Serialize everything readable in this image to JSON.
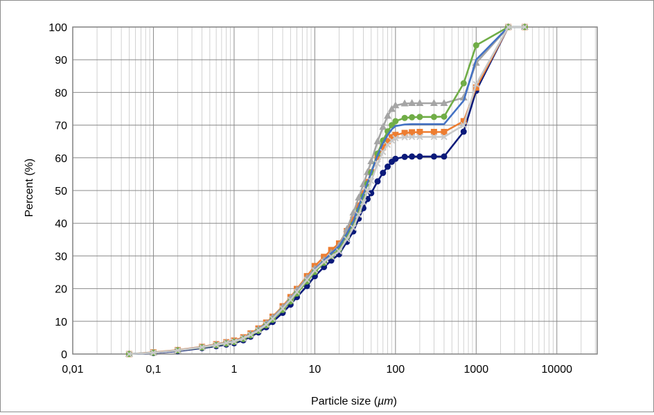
{
  "chart_data": {
    "type": "line",
    "title": "",
    "xlabel_prefix": "Particle size (",
    "xlabel_unit": "µm",
    "xlabel_suffix": ")",
    "ylabel": "Percent (%)",
    "x_scale": "log",
    "xlim": [
      0.01,
      10000
    ],
    "ylim": [
      0,
      100
    ],
    "x_tick_labels": [
      "0,01",
      "0,1",
      "1",
      "10",
      "100",
      "1000",
      "10000"
    ],
    "y_tick_labels": [
      "0",
      "10",
      "20",
      "30",
      "40",
      "50",
      "60",
      "70",
      "80",
      "90",
      "100"
    ],
    "grid": true,
    "legend": "none",
    "series": [
      {
        "color": "#0b1a7a",
        "marker": "circle",
        "x": [
          0.05,
          0.1,
          0.2,
          0.4,
          0.6,
          0.8,
          1,
          1.3,
          1.6,
          2,
          2.5,
          3,
          4,
          5,
          6,
          8,
          10,
          13,
          16,
          20,
          25,
          30,
          35,
          40,
          45,
          50,
          60,
          70,
          80,
          90,
          100,
          130,
          160,
          200,
          300,
          400,
          700,
          1000,
          2500,
          4000
        ],
        "y": [
          0,
          0.3,
          0.9,
          1.8,
          2.4,
          2.9,
          3.3,
          4.2,
          5.3,
          6.6,
          8.2,
          9.8,
          12.6,
          15.1,
          17.4,
          20.8,
          23.8,
          26.6,
          28.6,
          30.5,
          34.3,
          37.5,
          41.4,
          44.6,
          47.4,
          49.2,
          52.8,
          55.4,
          57.3,
          58.8,
          59.7,
          60.3,
          60.4,
          60.4,
          60.4,
          60.4,
          68,
          80.5,
          100,
          100
        ]
      },
      {
        "color": "#ed7d31",
        "marker": "square",
        "x": [
          0.05,
          0.1,
          0.2,
          0.4,
          0.6,
          0.8,
          1,
          1.3,
          1.6,
          2,
          2.5,
          3,
          4,
          5,
          6,
          8,
          10,
          13,
          16,
          20,
          25,
          30,
          35,
          40,
          45,
          50,
          60,
          70,
          80,
          90,
          100,
          130,
          160,
          200,
          300,
          400,
          700,
          1000,
          2500,
          4000
        ],
        "y": [
          0,
          0.5,
          1.2,
          2.2,
          3,
          3.6,
          4.1,
          5.1,
          6.3,
          7.8,
          9.6,
          11.4,
          14.6,
          17.4,
          19.9,
          23.8,
          26.9,
          29.7,
          31.8,
          33.8,
          37.6,
          41.1,
          45.4,
          49.2,
          52.6,
          55.6,
          60.3,
          63.2,
          65.1,
          66.3,
          67,
          67.6,
          67.8,
          67.9,
          67.9,
          67.9,
          71.2,
          81.5,
          100,
          100
        ]
      },
      {
        "color": "#a5a5a5",
        "marker": "triangle",
        "x": [
          0.05,
          0.1,
          0.2,
          0.4,
          0.6,
          0.8,
          1,
          1.3,
          1.6,
          2,
          2.5,
          3,
          4,
          5,
          6,
          8,
          10,
          13,
          16,
          20,
          25,
          30,
          35,
          40,
          45,
          50,
          60,
          70,
          80,
          90,
          100,
          130,
          160,
          200,
          300,
          400,
          700,
          1000,
          2500,
          4000
        ],
        "y": [
          0,
          0.4,
          1.1,
          2.1,
          2.9,
          3.5,
          3.9,
          4.9,
          6.1,
          7.6,
          9.4,
          11.2,
          14.3,
          17.1,
          19.6,
          23.3,
          26.1,
          28.8,
          30.9,
          33.2,
          38.2,
          43.2,
          47.8,
          51.9,
          55.6,
          58.9,
          65,
          69.4,
          72.8,
          74.9,
          76,
          76.6,
          76.7,
          76.7,
          76.7,
          76.7,
          78.4,
          89,
          100,
          100
        ]
      },
      {
        "color": "#70ad47",
        "marker": "circle",
        "x": [
          0.05,
          0.1,
          0.2,
          0.4,
          0.6,
          0.8,
          1,
          1.3,
          1.6,
          2,
          2.5,
          3,
          4,
          5,
          6,
          8,
          10,
          13,
          16,
          20,
          25,
          30,
          35,
          40,
          45,
          50,
          60,
          70,
          80,
          90,
          100,
          130,
          160,
          200,
          300,
          400,
          700,
          1000,
          2500,
          4000
        ],
        "y": [
          0,
          0.4,
          1.1,
          2,
          2.7,
          3.2,
          3.7,
          4.6,
          5.7,
          7.1,
          8.8,
          10.5,
          13.5,
          16.1,
          18.5,
          22.2,
          25.1,
          27.9,
          30,
          32,
          35.8,
          39.7,
          44,
          48.3,
          52.1,
          55.5,
          61.3,
          65.3,
          68.1,
          70,
          71.2,
          72.2,
          72.4,
          72.5,
          72.5,
          72.6,
          82.8,
          94.4,
          100,
          100
        ]
      },
      {
        "color": "#4472c4",
        "marker": "none",
        "x": [
          0.05,
          0.1,
          0.2,
          0.4,
          0.6,
          0.8,
          1,
          1.3,
          1.6,
          2,
          2.5,
          3,
          4,
          5,
          6,
          8,
          10,
          13,
          16,
          20,
          25,
          30,
          35,
          40,
          45,
          50,
          60,
          70,
          80,
          90,
          100,
          130,
          160,
          200,
          300,
          400,
          700,
          1000,
          2500,
          4000
        ],
        "y": [
          0,
          0.4,
          1.1,
          2.1,
          2.8,
          3.4,
          3.9,
          4.8,
          6,
          7.4,
          9.1,
          10.9,
          14,
          16.7,
          19.1,
          22.8,
          25.8,
          28.6,
          30.8,
          32.9,
          36.8,
          40.6,
          45,
          48.9,
          52.4,
          55.5,
          60.8,
          64.5,
          67,
          68.7,
          69.7,
          70.2,
          70.3,
          70.3,
          70.3,
          70.3,
          77.5,
          90,
          100,
          100
        ]
      },
      {
        "color": "#c9c9c9",
        "marker": "cross",
        "x": [
          0.05,
          0.1,
          0.2,
          0.4,
          0.6,
          0.8,
          1,
          1.3,
          1.6,
          2,
          2.5,
          3,
          4,
          5,
          6,
          8,
          10,
          13,
          16,
          20,
          25,
          30,
          35,
          40,
          45,
          50,
          60,
          70,
          80,
          90,
          100,
          130,
          160,
          200,
          300,
          400,
          700,
          1000,
          2500,
          4000
        ],
        "y": [
          0,
          0.4,
          1.1,
          2.1,
          2.8,
          3.4,
          3.8,
          4.8,
          5.9,
          7.3,
          9,
          10.8,
          13.9,
          16.6,
          19,
          22.7,
          25.6,
          28.2,
          29.8,
          31.4,
          35.1,
          38.6,
          42.6,
          46.4,
          49.8,
          52.9,
          58.2,
          61.8,
          64,
          65.3,
          66,
          66.3,
          66.4,
          66.4,
          66.4,
          66.4,
          70,
          82.5,
          100,
          100
        ]
      }
    ]
  }
}
